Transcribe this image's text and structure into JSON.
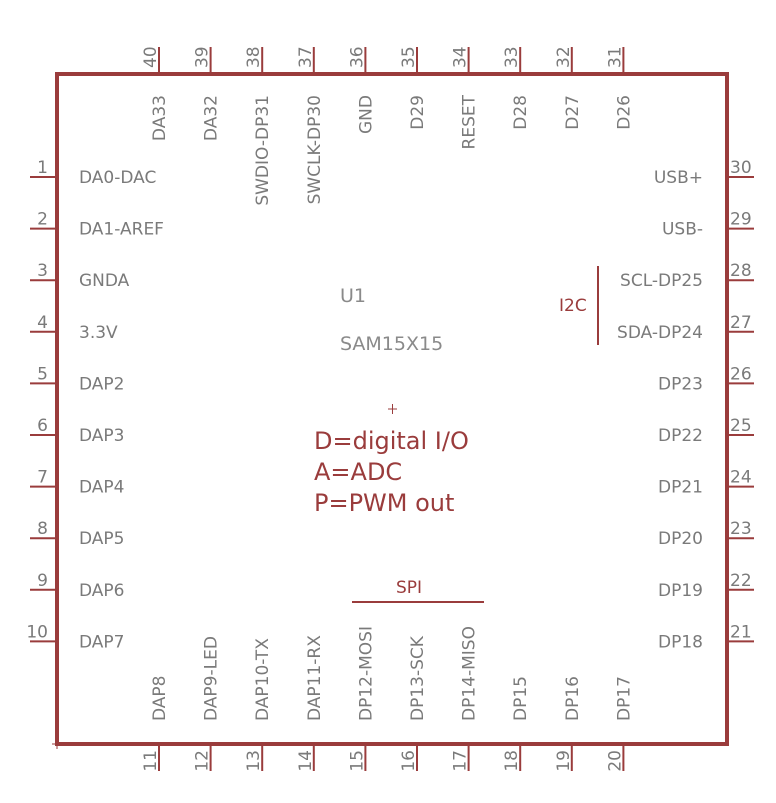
{
  "part": {
    "name": "U1",
    "value": "SAM15X15"
  },
  "notes": [
    "D=digital I/O",
    "A=ADC",
    "P=PWM out"
  ],
  "groups": {
    "i2c": "I2C",
    "spi": "SPI"
  },
  "pins": {
    "left": [
      {
        "num": "1",
        "name": "DA0-DAC"
      },
      {
        "num": "2",
        "name": "DA1-AREF"
      },
      {
        "num": "3",
        "name": "GNDA"
      },
      {
        "num": "4",
        "name": "3.3V"
      },
      {
        "num": "5",
        "name": "DAP2"
      },
      {
        "num": "6",
        "name": "DAP3"
      },
      {
        "num": "7",
        "name": "DAP4"
      },
      {
        "num": "8",
        "name": "DAP5"
      },
      {
        "num": "9",
        "name": "DAP6"
      },
      {
        "num": "10",
        "name": "DAP7"
      }
    ],
    "right": [
      {
        "num": "30",
        "name": "USB+"
      },
      {
        "num": "29",
        "name": "USB-"
      },
      {
        "num": "28",
        "name": "SCL-DP25"
      },
      {
        "num": "27",
        "name": "SDA-DP24"
      },
      {
        "num": "26",
        "name": "DP23"
      },
      {
        "num": "25",
        "name": "DP22"
      },
      {
        "num": "24",
        "name": "DP21"
      },
      {
        "num": "23",
        "name": "DP20"
      },
      {
        "num": "22",
        "name": "DP19"
      },
      {
        "num": "21",
        "name": "DP18"
      }
    ],
    "top": [
      {
        "num": "40",
        "name": "DA33"
      },
      {
        "num": "39",
        "name": "DA32"
      },
      {
        "num": "38",
        "name": "SWDIO-DP31"
      },
      {
        "num": "37",
        "name": "SWCLK-DP30"
      },
      {
        "num": "36",
        "name": "GND"
      },
      {
        "num": "35",
        "name": "D29"
      },
      {
        "num": "34",
        "name": "RESET"
      },
      {
        "num": "33",
        "name": "D28"
      },
      {
        "num": "32",
        "name": "D27"
      },
      {
        "num": "31",
        "name": "D26"
      }
    ],
    "bottom": [
      {
        "num": "11",
        "name": "DAP8"
      },
      {
        "num": "12",
        "name": "DAP9-LED"
      },
      {
        "num": "13",
        "name": "DAP10-TX"
      },
      {
        "num": "14",
        "name": "DAP11-RX"
      },
      {
        "num": "15",
        "name": "DP12-MOSI"
      },
      {
        "num": "16",
        "name": "DP13-SCK"
      },
      {
        "num": "17",
        "name": "DP14-MISO"
      },
      {
        "num": "18",
        "name": "DP15"
      },
      {
        "num": "19",
        "name": "DP16"
      },
      {
        "num": "20",
        "name": "DP17"
      }
    ]
  }
}
